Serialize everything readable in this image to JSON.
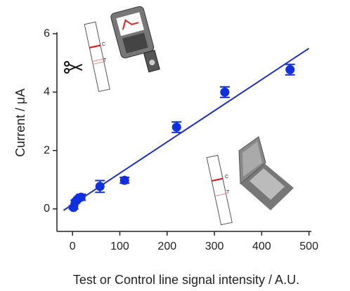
{
  "chart_data": {
    "type": "scatter",
    "x_label": "Test or Control line signal intensity / A.U.",
    "y_label": "Current / μA",
    "xlim": [
      -33,
      505
    ],
    "ylim": [
      -0.77,
      6.05
    ],
    "xticks": [
      0,
      100,
      200,
      300,
      400,
      500
    ],
    "yticks": [
      0,
      2,
      4,
      6
    ],
    "points": {
      "color": "#1030e0",
      "x": [
        2,
        6,
        12,
        18,
        58,
        110,
        220,
        322,
        460
      ],
      "y": [
        0.05,
        0.25,
        0.35,
        0.4,
        0.77,
        0.98,
        2.8,
        4.0,
        4.77
      ],
      "errors": [
        0.05,
        0.05,
        0.05,
        0.1,
        0.2,
        0.1,
        0.18,
        0.18,
        0.18
      ]
    },
    "fit": {
      "color": "#1f2fbf",
      "x": [
        -19,
        500
      ],
      "y": [
        -0.05,
        5.5
      ]
    },
    "strips": [
      [
        "C",
        "T"
      ],
      [
        "C",
        "T"
      ]
    ]
  }
}
